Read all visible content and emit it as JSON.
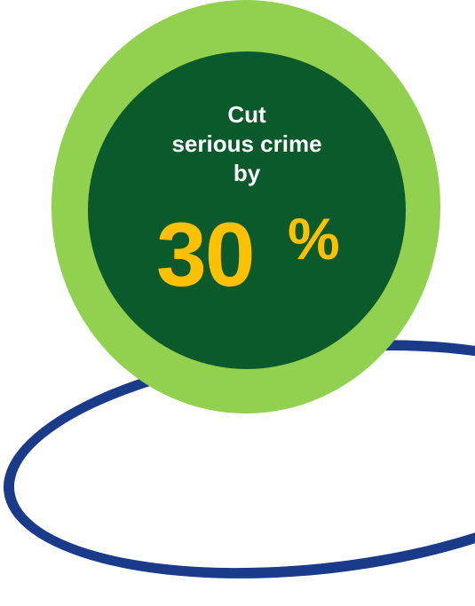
{
  "colors": {
    "outer_ring": "#92d050",
    "inner_circle": "#0b5a2b",
    "accent": "#ffc000",
    "arc": "#1a3a8a",
    "caption_text": "#ffffff"
  },
  "caption": {
    "line1": "Cut",
    "line2": "serious crime",
    "line3": "by"
  },
  "stat": {
    "value": "30",
    "unit": "%"
  }
}
